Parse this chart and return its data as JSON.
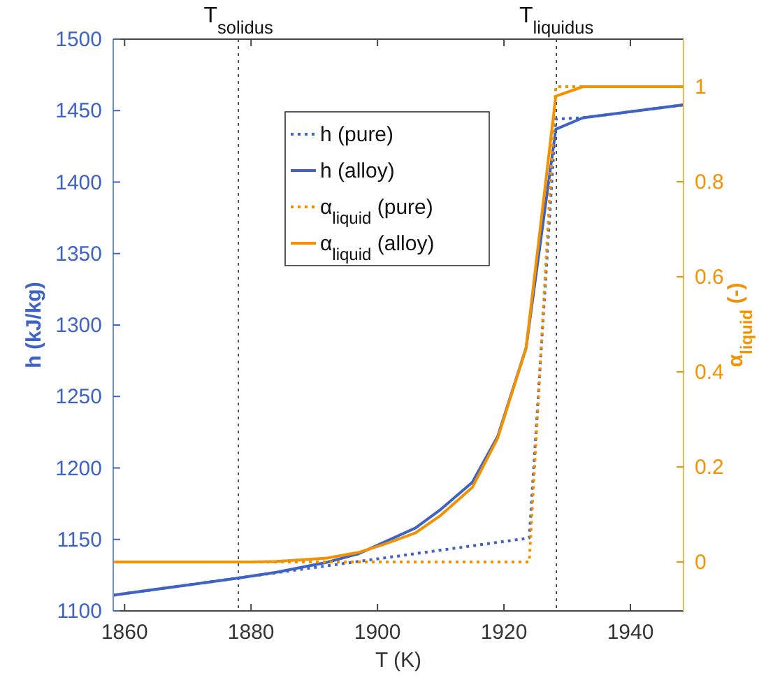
{
  "chart_data": {
    "type": "line",
    "xlabel": "T (K)",
    "ylabel": "h (kJ/kg)",
    "y2label": "α$_{liquid}$ (-)",
    "xlim": [
      1858.2,
      1948.4
    ],
    "xticks": [
      1860,
      1880,
      1900,
      1920,
      1940
    ],
    "ylim": [
      1100,
      1500
    ],
    "yticks": [
      1100,
      1150,
      1200,
      1250,
      1300,
      1350,
      1400,
      1450,
      1500
    ],
    "y2lim": [
      -0.103,
      1.1
    ],
    "y2ticks": [
      0,
      0.2,
      0.4,
      0.6,
      0.8,
      1
    ],
    "grid": false,
    "legend": "top",
    "ref_lines": [
      {
        "axis": "x",
        "value": 1878,
        "label": "T$_{solidus}$",
        "color": "#333333",
        "line_style": "dotted"
      },
      {
        "axis": "x",
        "value": 1928.3,
        "label": "T$_{liquidus}$",
        "color": "#333333",
        "line_style": "dotted"
      }
    ],
    "series": [
      {
        "name": "h (pure)",
        "color": "#3f63c4",
        "line_style": "dotted",
        "x": [
          1858.2,
          1924,
          1928.2,
          1932.5,
          1948.4
        ],
        "values": [
          1111,
          1151,
          1444,
          1445,
          1454
        ]
      },
      {
        "name": "h (alloy)",
        "color": "#3f63c4",
        "line_style": "solid",
        "x": [
          1858.2,
          1878,
          1884,
          1892,
          1897,
          1901,
          1906,
          1910,
          1915,
          1919,
          1923.5,
          1928.2,
          1932.5,
          1948.4
        ],
        "values": [
          1111,
          1123,
          1127,
          1134,
          1140,
          1148,
          1158,
          1171,
          1190,
          1222,
          1284,
          1437,
          1445,
          1454
        ]
      },
      {
        "name": "α$_{liquid}$ (pure)",
        "color": "#f39200",
        "line_style": "dotted",
        "axis": "y2",
        "x": [
          1858.2,
          1924,
          1928.2,
          1948.4
        ],
        "values": [
          0,
          0,
          1,
          1
        ]
      },
      {
        "name": "α$_{liquid}$ (alloy)",
        "color": "#f39200",
        "line_style": "solid",
        "axis": "y2",
        "x": [
          1858.2,
          1880,
          1884,
          1892,
          1897,
          1901,
          1906,
          1910,
          1915,
          1919,
          1923.5,
          1928.2,
          1932.5,
          1948.4
        ],
        "values": [
          0,
          0,
          0.001,
          0.008,
          0.02,
          0.037,
          0.061,
          0.098,
          0.157,
          0.26,
          0.45,
          0.98,
          1,
          1
        ]
      }
    ]
  }
}
